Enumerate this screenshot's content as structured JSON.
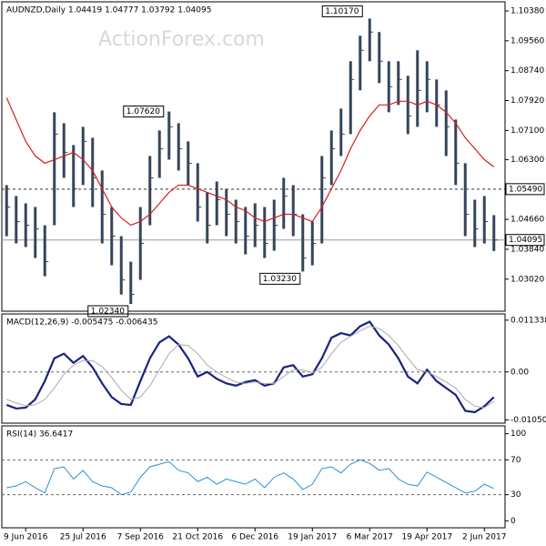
{
  "chart_data": [
    {
      "type": "ohlc",
      "title": "AUDNZD,Daily  1.04419 1.04777 1.03792 1.04095",
      "watermark": "ActionForex.com",
      "categories": [
        null,
        null,
        "9 Jun 2016",
        null,
        null,
        null,
        null,
        null,
        "25 Jul 2016",
        null,
        null,
        null,
        null,
        null,
        "7 Sep 2016",
        null,
        null,
        null,
        null,
        null,
        "21 Oct 2016",
        null,
        null,
        null,
        null,
        null,
        "6 Dec 2016",
        null,
        null,
        null,
        null,
        null,
        "19 Jan 2017",
        null,
        null,
        null,
        null,
        null,
        "6 Mar 2017",
        null,
        null,
        null,
        null,
        null,
        "19 Apr 2017",
        null,
        null,
        null,
        null,
        null,
        "2 Jun 2017",
        null
      ],
      "high": [
        1.056,
        1.053,
        1.051,
        1.05,
        1.045,
        1.076,
        1.073,
        1.067,
        1.072,
        1.069,
        1.06,
        1.05,
        1.042,
        1.035,
        1.05,
        1.064,
        1.071,
        1.0762,
        1.073,
        1.068,
        1.062,
        1.054,
        1.057,
        1.055,
        1.052,
        1.05,
        1.051,
        1.05,
        1.052,
        1.058,
        1.056,
        1.048,
        1.046,
        1.064,
        1.071,
        1.077,
        1.09,
        1.097,
        1.1017,
        1.098,
        1.09,
        1.09,
        1.086,
        1.093,
        1.09,
        1.085,
        1.082,
        1.074,
        1.062,
        1.052,
        1.053,
        1.04777
      ],
      "low": [
        1.042,
        1.04,
        1.039,
        1.036,
        1.031,
        1.045,
        1.058,
        1.05,
        1.056,
        1.05,
        1.04,
        1.034,
        1.026,
        1.0234,
        1.03,
        1.045,
        1.058,
        1.063,
        1.06,
        1.056,
        1.046,
        1.04,
        1.045,
        1.042,
        1.04,
        1.037,
        1.039,
        1.036,
        1.038,
        1.044,
        1.042,
        1.0323,
        1.034,
        1.04,
        1.056,
        1.064,
        1.07,
        1.082,
        1.09,
        1.084,
        1.076,
        1.078,
        1.07,
        1.072,
        1.076,
        1.072,
        1.064,
        1.056,
        1.042,
        1.039,
        1.04,
        1.03792
      ],
      "close": [
        1.05,
        1.046,
        1.045,
        1.044,
        1.035,
        1.07,
        1.065,
        1.055,
        1.068,
        1.058,
        1.048,
        1.042,
        1.03,
        1.026,
        1.04,
        1.058,
        1.066,
        1.072,
        1.066,
        1.062,
        1.05,
        1.045,
        1.052,
        1.048,
        1.046,
        1.042,
        1.045,
        1.04,
        1.045,
        1.053,
        1.048,
        1.036,
        1.04,
        1.058,
        1.066,
        1.07,
        1.085,
        1.093,
        1.098,
        1.09,
        1.083,
        1.085,
        1.075,
        1.082,
        1.085,
        1.078,
        1.072,
        1.062,
        1.048,
        1.044,
        1.046,
        1.04095
      ],
      "color": "#36455a",
      "ma": [
        1.08,
        1.074,
        1.068,
        1.064,
        1.062,
        1.063,
        1.064,
        1.065,
        1.063,
        1.06,
        1.055,
        1.05,
        1.047,
        1.045,
        1.046,
        1.048,
        1.051,
        1.054,
        1.056,
        1.056,
        1.055,
        1.054,
        1.053,
        1.052,
        1.05,
        1.049,
        1.047,
        1.046,
        1.047,
        1.048,
        1.048,
        1.047,
        1.046,
        1.05,
        1.055,
        1.06,
        1.066,
        1.071,
        1.075,
        1.078,
        1.078,
        1.079,
        1.079,
        1.078,
        1.079,
        1.078,
        1.076,
        1.073,
        1.069,
        1.066,
        1.063,
        1.061
      ],
      "ma_color": "#d42020",
      "ylim": [
        1.0214,
        1.1063
      ],
      "yticks": [
        {
          "value": 1.1038,
          "label": "1.10380"
        },
        {
          "value": 1.0956,
          "label": "1.09560"
        },
        {
          "value": 1.0874,
          "label": "1.08740"
        },
        {
          "value": 1.0792,
          "label": "1.07920"
        },
        {
          "value": 1.071,
          "label": "1.07100"
        },
        {
          "value": 1.063,
          "label": "1.06300"
        },
        {
          "value": 1.0466,
          "label": "1.04660"
        },
        {
          "value": 1.0384,
          "label": "1.03840"
        },
        {
          "value": 1.0302,
          "label": "1.03020"
        }
      ],
      "levels": [
        {
          "value": 1.0549,
          "label": "1.05490",
          "style": "dashed"
        },
        {
          "value": 1.04095,
          "label": "1.04095",
          "style": "solid"
        }
      ],
      "annotations": [
        {
          "value": 1.1017,
          "label": "1.10170",
          "index": 38
        },
        {
          "value": 1.0762,
          "label": "1.07620",
          "index": 17
        },
        {
          "value": 1.0323,
          "label": "1.03230",
          "index": 31
        },
        {
          "value": 1.0234,
          "label": "1.02340",
          "index": 13
        }
      ]
    },
    {
      "type": "line",
      "title": "MACD(12,26,9) -0.005475 -0.006435",
      "series": [
        {
          "color": "#1a237e",
          "width": 2.2,
          "values": [
            -0.0072,
            -0.008,
            -0.0078,
            -0.006,
            -0.002,
            0.003,
            0.004,
            0.002,
            0.0035,
            0.001,
            -0.0025,
            -0.0055,
            -0.007,
            -0.0072,
            -0.002,
            0.003,
            0.0065,
            0.0078,
            0.006,
            0.003,
            -0.001,
            0.0,
            -0.0015,
            -0.0025,
            -0.003,
            -0.0022,
            -0.0018,
            -0.003,
            -0.0025,
            0.001,
            0.0015,
            -0.001,
            -0.0005,
            0.003,
            0.0075,
            0.0085,
            0.008,
            0.01,
            0.011,
            0.008,
            0.006,
            0.003,
            -0.001,
            -0.0025,
            0.0005,
            -0.002,
            -0.0035,
            -0.005,
            -0.0085,
            -0.0088,
            -0.0075,
            -0.0055
          ]
        },
        {
          "color": "#aaaaaa",
          "width": 1,
          "values": [
            -0.006,
            -0.0068,
            -0.0074,
            -0.0072,
            -0.006,
            -0.0035,
            -0.0005,
            0.0015,
            0.0025,
            0.0025,
            0.0012,
            -0.0012,
            -0.004,
            -0.006,
            -0.0055,
            -0.003,
            0.0005,
            0.004,
            0.006,
            0.0058,
            0.004,
            0.0015,
            0.0,
            -0.0012,
            -0.0022,
            -0.0025,
            -0.0022,
            -0.0025,
            -0.0025,
            -0.001,
            0.0005,
            0.0005,
            -0.0002,
            0.001,
            0.004,
            0.0065,
            0.0078,
            0.009,
            0.01,
            0.0095,
            0.008,
            0.0058,
            0.003,
            0.0005,
            0.0,
            -0.001,
            -0.0022,
            -0.0035,
            -0.006,
            -0.0075,
            -0.0078,
            -0.0064
          ]
        }
      ],
      "ylim": [
        -0.0112,
        0.0127
      ],
      "yticks": [
        0.011338,
        {
          "value": 0,
          "label": "0.00"
        },
        -0.010506
      ],
      "levels": [
        0
      ]
    },
    {
      "type": "line",
      "title": "RSI(14) 36.6417",
      "series": [
        {
          "color": "#2b8fd6",
          "width": 1,
          "values": [
            38,
            40,
            45,
            38,
            32,
            60,
            62,
            48,
            58,
            45,
            40,
            38,
            30,
            33,
            50,
            62,
            65,
            68,
            58,
            55,
            45,
            50,
            42,
            48,
            45,
            42,
            48,
            38,
            50,
            55,
            48,
            36,
            42,
            60,
            62,
            55,
            65,
            70,
            66,
            58,
            60,
            48,
            42,
            40,
            56,
            50,
            44,
            38,
            32,
            34,
            42,
            37
          ]
        }
      ],
      "ylim": [
        -8,
        109
      ],
      "yticks": [
        100,
        70,
        30,
        0
      ],
      "levels": [
        70,
        30
      ]
    }
  ]
}
